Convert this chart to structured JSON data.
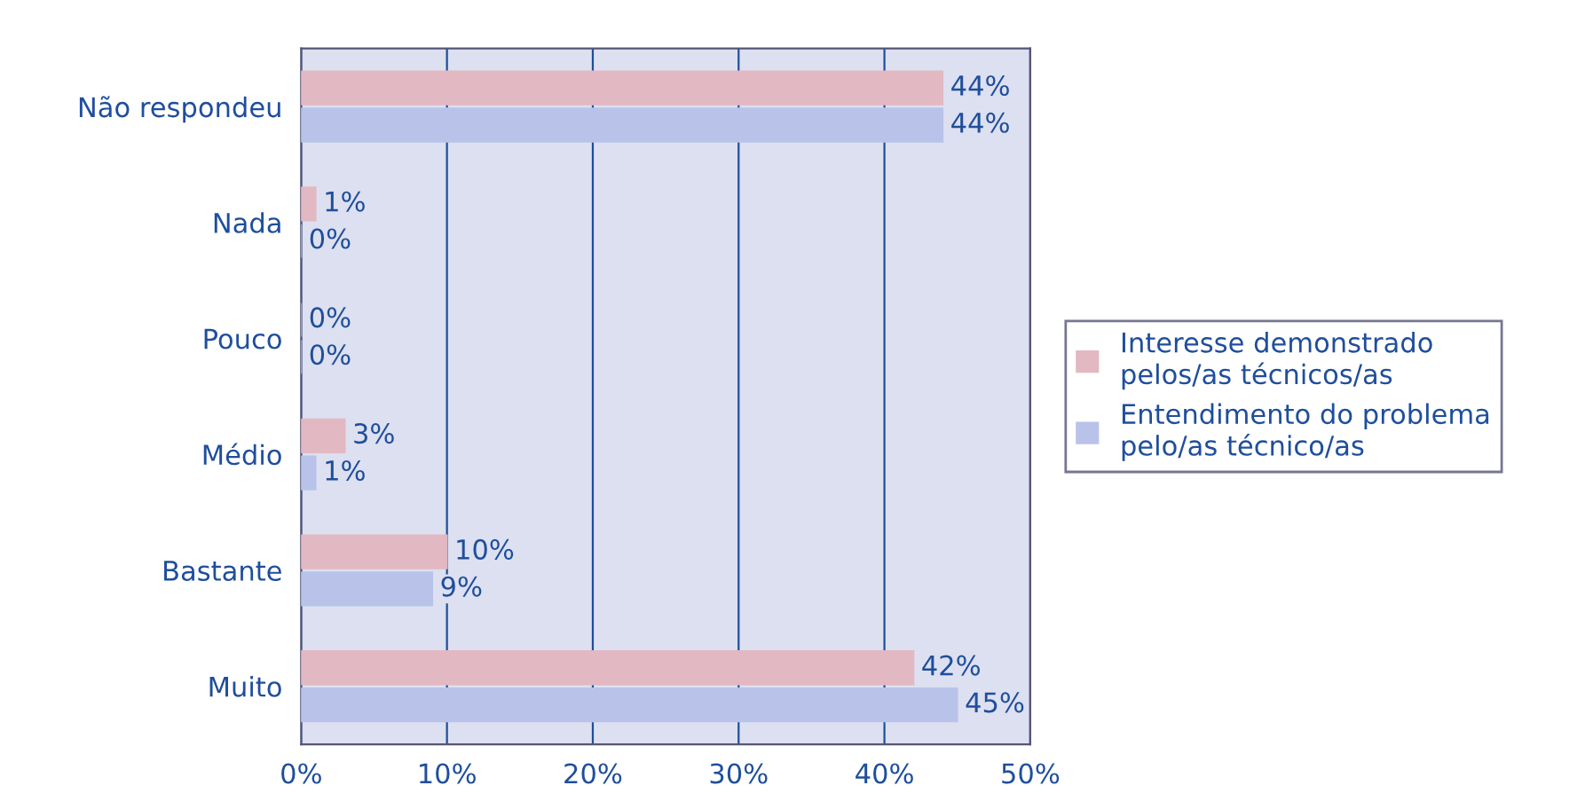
{
  "chart_data": {
    "type": "bar",
    "orientation": "horizontal",
    "categories": [
      "Não respondeu",
      "Nada",
      "Pouco",
      "Médio",
      "Bastante",
      "Muito"
    ],
    "series": [
      {
        "name": "Interesse demonstrado\npelos/as técnicos/as",
        "color": "#e2b8c2",
        "values": [
          44,
          1,
          0,
          3,
          10,
          42
        ]
      },
      {
        "name": "Entendimento do problema\npelo/as técnico/as",
        "color": "#b9c3ea",
        "values": [
          44,
          0,
          0,
          1,
          9,
          45
        ]
      }
    ],
    "value_labels": [
      [
        "44%",
        "1%",
        "0%",
        "3%",
        "10%",
        "42%"
      ],
      [
        "44%",
        "0%",
        "0%",
        "1%",
        "9%",
        "45%"
      ]
    ],
    "xlim": [
      0,
      50
    ],
    "xticks": [
      {
        "value": 0,
        "label": "0%"
      },
      {
        "value": 10,
        "label": "10%"
      },
      {
        "value": 20,
        "label": "20%"
      },
      {
        "value": 30,
        "label": "30%"
      },
      {
        "value": 40,
        "label": "40%"
      },
      {
        "value": 50,
        "label": "50%"
      }
    ],
    "grid": "x",
    "legend": "right"
  }
}
